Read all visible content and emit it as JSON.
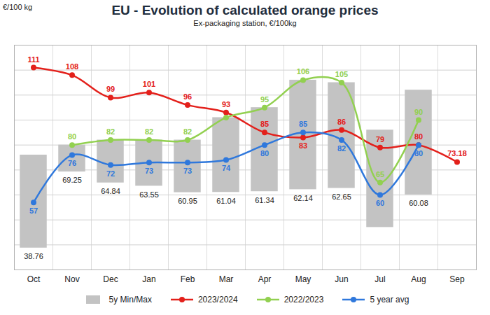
{
  "chart_data": {
    "type": "line",
    "title": "EU  -  Evolution of calculated orange prices",
    "subtitle": "Ex-packaging station, €/100kg",
    "y_label": "€/100 kg",
    "categories": [
      "Oct",
      "Nov",
      "Dec",
      "Jan",
      "Feb",
      "Mar",
      "Apr",
      "May",
      "Jun",
      "Jul",
      "Aug",
      "Sep"
    ],
    "ylim": [
      30,
      120
    ],
    "yticks": [
      30,
      40,
      50,
      60,
      70,
      80,
      90,
      100,
      110,
      120
    ],
    "grid": true,
    "tick_labels": "x",
    "data_labels": true,
    "legend": "bottom",
    "series": [
      {
        "name": "5y Min/Max",
        "type": "bar",
        "color": "#c3c3c3",
        "low": [
          38.76,
          69.25,
          64.84,
          63.55,
          60.95,
          61.04,
          61.34,
          62.14,
          62.65,
          47,
          60.08,
          null
        ],
        "high": [
          76,
          80,
          82,
          82,
          82,
          91,
          95,
          106,
          105,
          86,
          102,
          null
        ],
        "value_labels": [
          "38.76",
          "69.25",
          "64.84",
          "63.55",
          "60.95",
          "61.04",
          "61.34",
          "62.14",
          "62.65",
          null,
          "60.08",
          null
        ]
      },
      {
        "name": "2023/2024",
        "type": "line",
        "color": "#e3201b",
        "marker": "circle",
        "values": [
          111,
          108,
          99,
          101,
          96,
          93,
          85,
          83,
          86,
          79,
          80,
          73.18
        ]
      },
      {
        "name": "2022/2023",
        "type": "line",
        "color": "#92d050",
        "marker": "circle",
        "values": [
          null,
          80,
          82,
          82,
          82,
          91,
          95,
          106,
          105,
          65,
          90,
          null
        ],
        "value_labels": [
          null,
          "80",
          "82",
          "82",
          "82",
          null,
          "95",
          "106",
          "105",
          "65",
          "90",
          null
        ]
      },
      {
        "name": "5 year avg",
        "type": "line",
        "color": "#2f78dc",
        "marker": "circle",
        "values": [
          57,
          76,
          72,
          73,
          73,
          74,
          80,
          85,
          82,
          60,
          80,
          null
        ]
      }
    ]
  }
}
